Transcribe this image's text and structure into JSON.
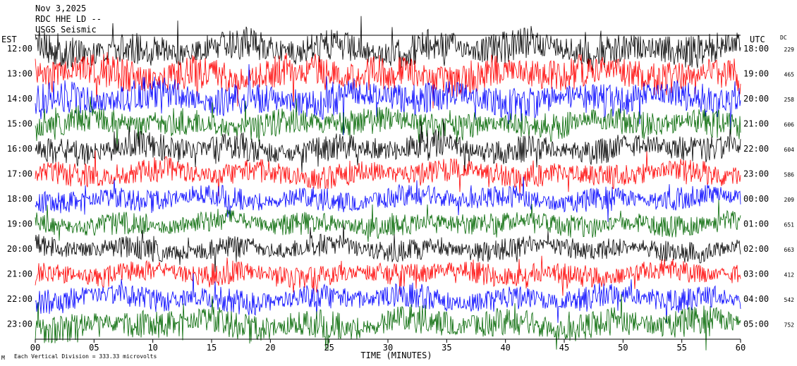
{
  "header": {
    "date": "Nov 3,2025",
    "station": "RDC HHE LD --",
    "line3": "USGS Seismic"
  },
  "labels": {
    "left_zone": "EST",
    "right_zone": "UTC",
    "dc_header": "DC",
    "x_axis": "TIME (MINUTES)",
    "scale_note": "Each Vertical Division = 333.33 microvolts",
    "corner_mark": "M"
  },
  "chart_data": {
    "type": "line",
    "title": "",
    "xlabel": "TIME (MINUTES)",
    "ylabel": "",
    "xlim": [
      0,
      60
    ],
    "x_ticks": [
      "00",
      "05",
      "10",
      "15",
      "20",
      "25",
      "30",
      "35",
      "40",
      "45",
      "50",
      "55",
      "60"
    ],
    "trace_colors": [
      "#000000",
      "#ff0000",
      "#0000ff",
      "#006600"
    ],
    "series": [
      {
        "est": "12:00",
        "utc": "18:00",
        "dc": "229",
        "amplitude": 0.8
      },
      {
        "est": "13:00",
        "utc": "19:00",
        "dc": "465",
        "amplitude": 0.85
      },
      {
        "est": "14:00",
        "utc": "20:00",
        "dc": "258",
        "amplitude": 0.8
      },
      {
        "est": "15:00",
        "utc": "21:00",
        "dc": "606",
        "amplitude": 0.7
      },
      {
        "est": "16:00",
        "utc": "22:00",
        "dc": "604",
        "amplitude": 0.65
      },
      {
        "est": "17:00",
        "utc": "23:00",
        "dc": "586",
        "amplitude": 0.6
      },
      {
        "est": "18:00",
        "utc": "00:00",
        "dc": "209",
        "amplitude": 0.55
      },
      {
        "est": "19:00",
        "utc": "01:00",
        "dc": "651",
        "amplitude": 0.55
      },
      {
        "est": "20:00",
        "utc": "02:00",
        "dc": "663",
        "amplitude": 0.55
      },
      {
        "est": "21:00",
        "utc": "03:00",
        "dc": "412",
        "amplitude": 0.55
      },
      {
        "est": "22:00",
        "utc": "04:00",
        "dc": "542",
        "amplitude": 0.6
      },
      {
        "est": "23:00",
        "utc": "05:00",
        "dc": "752",
        "amplitude": 0.7
      }
    ]
  }
}
